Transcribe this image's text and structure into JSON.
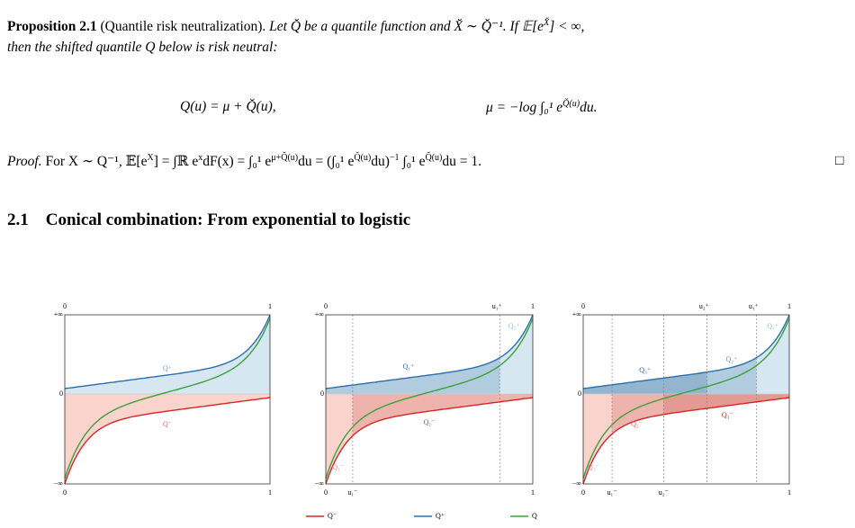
{
  "proposition": {
    "label": "Proposition 2.1",
    "name": "(Quantile risk neutralization).",
    "statement": [
      "Let Q̆ be a quantile function and X̆ ∼ Q̆⁻¹. If 𝔼[e",
      "X̆",
      "] < ∞,"
    ],
    "statement_2": "then the shifted quantile Q below is risk neutral:"
  },
  "equations": {
    "left": "Q(u) = μ + Q̆(u),",
    "right": [
      "μ = −log ∫₀¹ e",
      "Q̆(u)",
      "du."
    ]
  },
  "proof": {
    "label": "Proof.",
    "text": [
      "For X ∼ Q⁻¹, 𝔼[e",
      "X",
      "] = ∫ℝ e",
      "x",
      "dF(x) = ∫₀¹ e",
      "μ+Q̆(u)",
      "du = (∫₀¹ e",
      "Q̆(u)",
      "du)",
      "−1",
      " ∫₀¹ e",
      "Q̆(u)",
      "du = 1."
    ],
    "qed": "□"
  },
  "section": {
    "number": "2.1",
    "title": "Conical combination: From exponential to logistic"
  },
  "figures": [
    {
      "top_labels": [
        "0",
        "1"
      ],
      "left_labels": [
        "+∞",
        "0",
        "−∞"
      ],
      "bottom_labels": [
        "0",
        "1"
      ],
      "region_labels": [
        "Q⁺",
        "Q⁻"
      ]
    },
    {
      "top_labels": [
        "0",
        "u₁⁺",
        "1"
      ],
      "left_labels": [
        "+∞",
        "0",
        "−∞"
      ],
      "bottom_labels": [
        "0",
        "u₁⁻",
        "1"
      ],
      "region_labels": [
        "Q₁⁺",
        "Q₂⁺",
        "Q₂⁻",
        "Q₁⁻"
      ]
    },
    {
      "top_labels": [
        "0",
        "u₂⁺",
        "u₁⁺",
        "1"
      ],
      "left_labels": [
        "+∞",
        "0",
        "−∞"
      ],
      "bottom_labels": [
        "0",
        "u₁⁻",
        "u₂⁻",
        "1"
      ],
      "region_labels": [
        "Q₃⁺",
        "Q₂⁺",
        "Q₁⁺",
        "Q₃⁻",
        "Q₂⁻",
        "Q₁⁻"
      ]
    }
  ],
  "legend": [
    "Q⁻",
    "Q⁺",
    "Q"
  ]
}
